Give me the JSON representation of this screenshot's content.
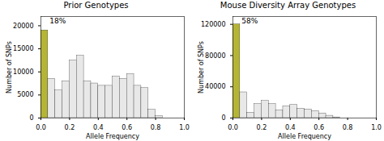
{
  "chart_data": [
    {
      "type": "histogram",
      "title": "Prior Genotypes",
      "xlabel": "Allele Frequency",
      "ylabel": "Number of SNPs",
      "bins": [
        0.0,
        0.05,
        0.1,
        0.15,
        0.2,
        0.25,
        0.3,
        0.35,
        0.4,
        0.45,
        0.5,
        0.55,
        0.6,
        0.65,
        0.7,
        0.75,
        0.8,
        0.85
      ],
      "values": [
        19000,
        8500,
        6000,
        8000,
        12500,
        13500,
        8000,
        7500,
        7000,
        7000,
        9000,
        8500,
        9500,
        7000,
        6500,
        1800,
        400
      ],
      "colors": [
        "#b5b535",
        "#e8e8e8",
        "#e8e8e8",
        "#e8e8e8",
        "#e8e8e8",
        "#e8e8e8",
        "#e8e8e8",
        "#e8e8e8",
        "#e8e8e8",
        "#e8e8e8",
        "#e8e8e8",
        "#e8e8e8",
        "#e8e8e8",
        "#e8e8e8",
        "#e8e8e8",
        "#e8e8e8",
        "#e8e8e8"
      ],
      "xlim": [
        0.0,
        1.0
      ],
      "xticks": [
        {
          "value": 0.0,
          "label": "0.0"
        },
        {
          "value": 0.2,
          "label": "0.2"
        },
        {
          "value": 0.4,
          "label": "0.4"
        },
        {
          "value": 0.6,
          "label": "0.6"
        },
        {
          "value": 0.8,
          "label": "0.8"
        },
        {
          "value": 1.0,
          "label": "1.0"
        }
      ],
      "ylim": [
        0,
        22000
      ],
      "yticks": [
        0,
        5000,
        10000,
        15000,
        20000
      ],
      "annotations": [
        "18%"
      ]
    },
    {
      "type": "histogram",
      "title": "Mouse Diversity Array Genotypes",
      "xlabel": "Allele Frequency",
      "ylabel": "Number of SNPs",
      "bins": [
        0.0,
        0.05,
        0.1,
        0.15,
        0.2,
        0.25,
        0.3,
        0.35,
        0.4,
        0.45,
        0.5,
        0.55,
        0.6,
        0.65,
        0.7,
        0.75
      ],
      "values": [
        120000,
        33000,
        7000,
        18000,
        22000,
        18000,
        10000,
        15000,
        17000,
        12000,
        11000,
        9000,
        6000,
        3000,
        900
      ],
      "colors": [
        "#b5b535",
        "#e8e8e8",
        "#e8e8e8",
        "#e8e8e8",
        "#e8e8e8",
        "#e8e8e8",
        "#e8e8e8",
        "#e8e8e8",
        "#e8e8e8",
        "#e8e8e8",
        "#e8e8e8",
        "#e8e8e8",
        "#e8e8e8",
        "#e8e8e8",
        "#e8e8e8"
      ],
      "xlim": [
        0.0,
        1.0
      ],
      "xticks": [
        {
          "value": 0.0,
          "label": "0.0"
        },
        {
          "value": 0.2,
          "label": "0.2"
        },
        {
          "value": 0.4,
          "label": "0.4"
        },
        {
          "value": 0.6,
          "label": "0.6"
        },
        {
          "value": 0.8,
          "label": "0.8"
        },
        {
          "value": 1.0,
          "label": "1.0"
        }
      ],
      "ylim": [
        0,
        130000
      ],
      "yticks": [
        0,
        40000,
        80000,
        120000
      ],
      "annotations": [
        "58%"
      ]
    }
  ]
}
